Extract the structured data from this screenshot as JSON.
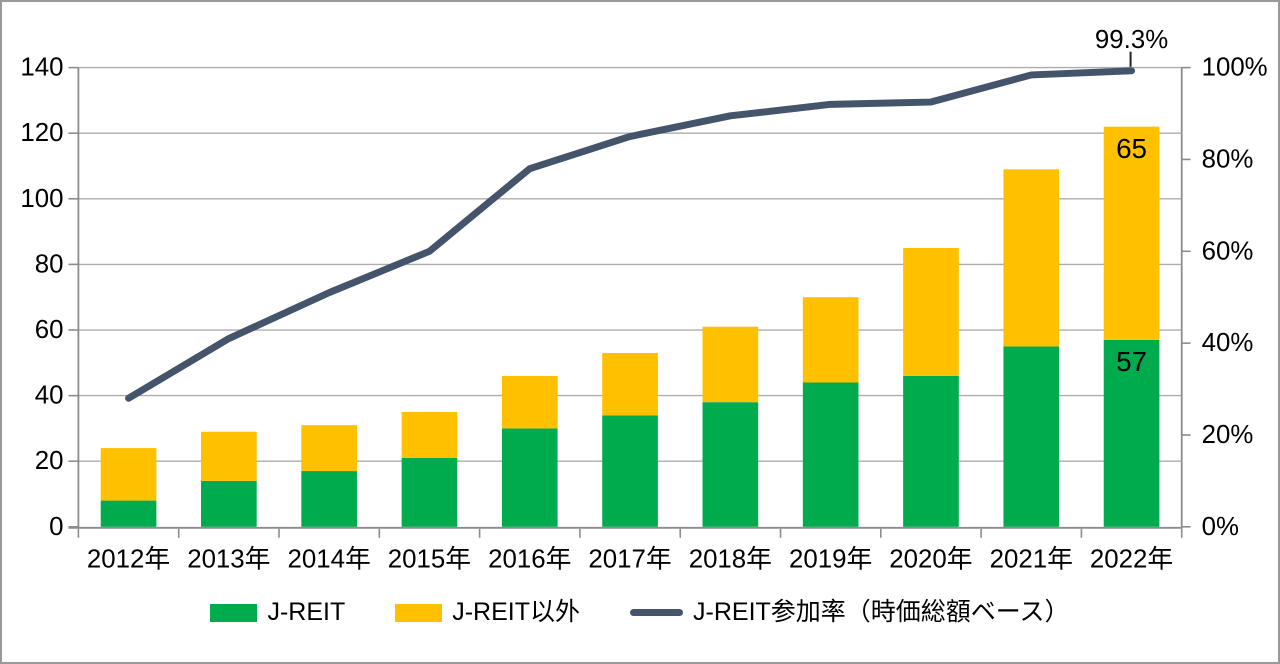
{
  "chart_data": {
    "type": "combo",
    "title": "",
    "categories": [
      "2012年",
      "2013年",
      "2014年",
      "2015年",
      "2016年",
      "2017年",
      "2018年",
      "2019年",
      "2020年",
      "2021年",
      "2022年"
    ],
    "series": [
      {
        "name": "J-REIT",
        "type": "bar",
        "stack": "total",
        "color": "#00AB4E",
        "values": [
          8,
          14,
          17,
          21,
          30,
          34,
          38,
          44,
          46,
          55,
          57
        ],
        "data_labels": [
          null,
          null,
          null,
          null,
          null,
          null,
          null,
          null,
          null,
          null,
          57
        ]
      },
      {
        "name": "J-REIT以外",
        "type": "bar",
        "stack": "total",
        "color": "#FFC000",
        "values": [
          16,
          15,
          14,
          14,
          16,
          19,
          23,
          26,
          39,
          54,
          65
        ],
        "data_labels": [
          null,
          null,
          null,
          null,
          null,
          null,
          null,
          null,
          null,
          null,
          65
        ]
      },
      {
        "name": "J-REIT参加率（時価総額ベース）",
        "type": "line",
        "axis": "right",
        "color": "#44546A",
        "values": [
          28,
          41,
          51,
          60,
          78,
          85,
          89.5,
          92,
          92.5,
          98.4,
          99.3
        ]
      }
    ],
    "left_axis": {
      "min": 0,
      "max": 140,
      "step": 20,
      "tick_labels": [
        "0",
        "20",
        "40",
        "60",
        "80",
        "100",
        "120",
        "140"
      ]
    },
    "right_axis": {
      "min": 0,
      "max": 100,
      "step": 20,
      "tick_labels": [
        "0%",
        "20%",
        "40%",
        "60%",
        "80%",
        "100%"
      ],
      "unit": "%"
    },
    "annotations": [
      {
        "text": "99.3%",
        "series": "J-REIT参加率（時価総額ベース）",
        "category": "2022年"
      }
    ],
    "legend_position": "bottom",
    "grid": true
  },
  "colors": {
    "grid": "#ADADAD",
    "axis": "#8C8C8C",
    "text": "#000000",
    "background": "#FFFFFF",
    "border": "#999999"
  }
}
